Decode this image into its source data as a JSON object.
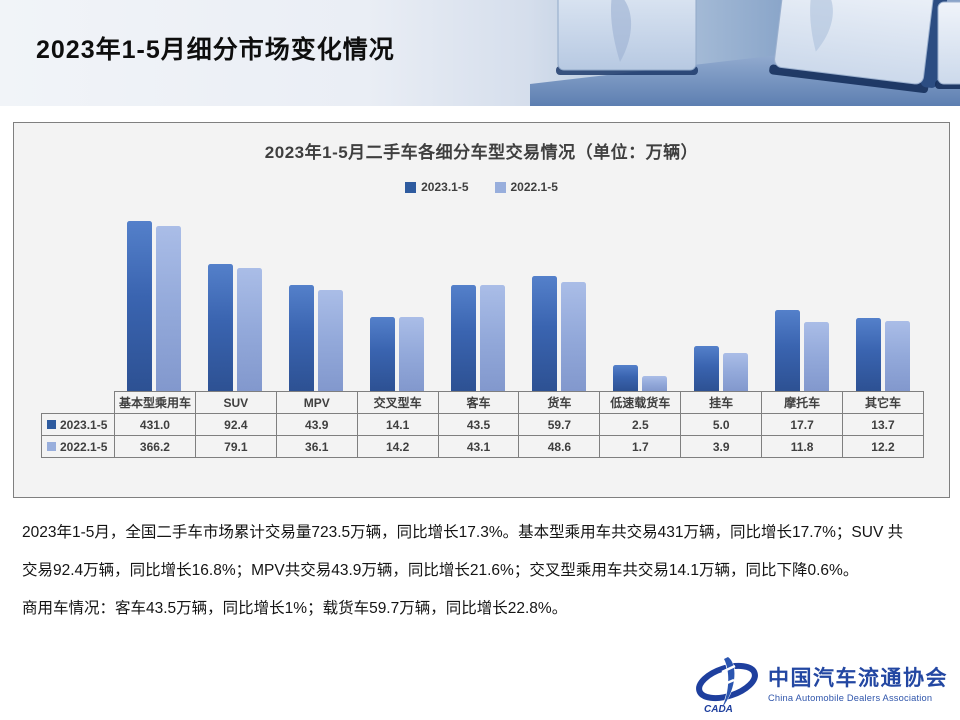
{
  "header": {
    "title": "2023年1-5月细分市场变化情况"
  },
  "chart": {
    "title": "2023年1-5月二手车各细分车型交易情况（单位：万辆）",
    "legend": [
      {
        "label": "2023.1-5",
        "color": "#2e5b9f"
      },
      {
        "label": "2022.1-5",
        "color": "#98aedc"
      }
    ]
  },
  "chart_data": {
    "type": "bar",
    "title": "2023年1-5月二手车各细分车型交易情况（单位：万辆）",
    "unit": "万辆",
    "categories": [
      "基本型乘用车",
      "SUV",
      "MPV",
      "交叉型车",
      "客车",
      "货车",
      "低速载货车",
      "挂车",
      "摩托车",
      "其它车"
    ],
    "series": [
      {
        "name": "2023.1-5",
        "values": [
          431.0,
          92.4,
          43.9,
          14.1,
          43.5,
          59.7,
          2.5,
          5.0,
          17.7,
          13.7
        ]
      },
      {
        "name": "2022.1-5",
        "values": [
          366.2,
          79.1,
          36.1,
          14.2,
          43.1,
          48.6,
          1.7,
          3.9,
          11.8,
          12.2
        ]
      }
    ],
    "legend_position": "top",
    "grid": false,
    "value_axis": "hidden (log-scaled bars, values shown in data table below chart)"
  },
  "body": {
    "lines": [
      "2023年1-5月，全国二手车市场累计交易量723.5万辆，同比增长17.3%。基本型乘用车共交易431万辆，同比增长17.7%；SUV 共",
      "交易92.4万辆，同比增长16.8%；MPV共交易43.9万辆，同比增长21.6%；交叉型乘用车共交易14.1万辆，同比下降0.6%。",
      "商用车情况：客车43.5万辆，同比增长1%；载货车59.7万辆，同比增长22.8%。"
    ]
  },
  "logo": {
    "cn": "中国汽车流通协会",
    "en": "China Automobile Dealers Association",
    "emblem_text": "CADA"
  }
}
